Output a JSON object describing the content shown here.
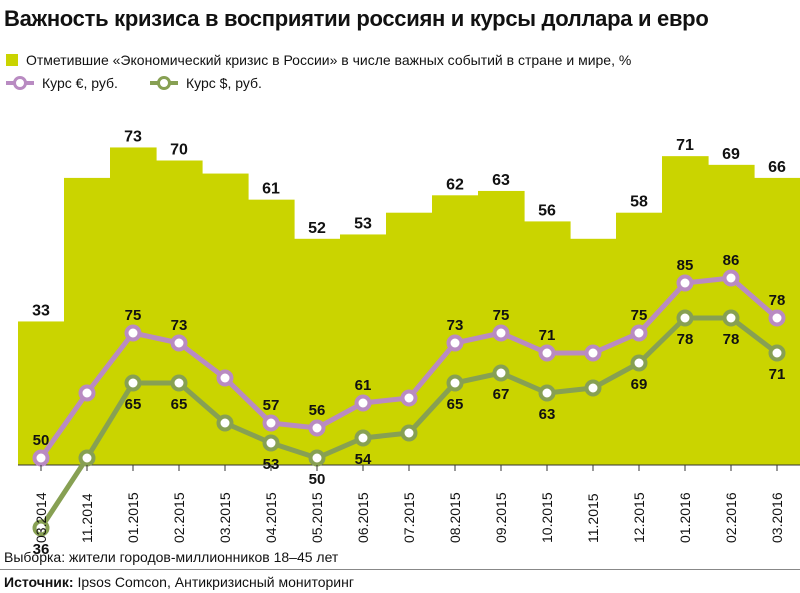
{
  "header": {
    "title": "Важность кризиса в восприятии россиян и курсы доллара и евро"
  },
  "legend": {
    "bars": "Отметившие «Экономический кризис в России» в числе важных событий в стране и мире, %",
    "euro": "Курс €, руб.",
    "usd": "Курс $, руб."
  },
  "footer": {
    "sample": "Выборка: жители городов-миллионников 18–45 лет",
    "source_label": "Источник:",
    "source_text": " Ipsos Comcon, Антикризисный мониторинг"
  },
  "colors": {
    "bars": "#cad400",
    "euro": "#b98bc2",
    "usd": "#87a053"
  },
  "chart_data": {
    "type": "bar",
    "categories": [
      "03.2014",
      "11.2014",
      "01.2015",
      "02.2015",
      "03.2015",
      "04.2015",
      "05.2015",
      "06.2015",
      "07.2015",
      "08.2015",
      "09.2015",
      "10.2015",
      "11.2015",
      "12.2015",
      "01.2016",
      "02.2016",
      "03.2016"
    ],
    "series": [
      {
        "name": "Отметившие «Экономический кризис в России» в числе важных событий в стране и мире, %",
        "type": "bar",
        "values": [
          33,
          66,
          73,
          70,
          67,
          61,
          52,
          53,
          58,
          62,
          63,
          56,
          52,
          58,
          71,
          69,
          66
        ],
        "labels": [
          "33",
          "",
          "73",
          "70",
          "",
          "61",
          "52",
          "53",
          "",
          "62",
          "63",
          "56",
          "",
          "58",
          "71",
          "69",
          "66"
        ]
      },
      {
        "name": "Курс €, руб.",
        "type": "line",
        "values": [
          50,
          63,
          75,
          73,
          66,
          57,
          56,
          61,
          62,
          73,
          75,
          71,
          71,
          75,
          85,
          86,
          78
        ],
        "labels": [
          "50",
          "",
          "75",
          "73",
          "",
          "57",
          "56",
          "61",
          "",
          "73",
          "75",
          "71",
          "",
          "75",
          "85",
          "86",
          "78"
        ]
      },
      {
        "name": "Курс $, руб.",
        "type": "line",
        "values": [
          36,
          50,
          65,
          65,
          57,
          53,
          50,
          54,
          55,
          65,
          67,
          63,
          64,
          69,
          78,
          78,
          71
        ],
        "labels": [
          "36",
          "",
          "65",
          "65",
          "",
          "53",
          "50",
          "54",
          "",
          "65",
          "67",
          "63",
          "",
          "69",
          "78",
          "78",
          "71"
        ]
      }
    ]
  }
}
